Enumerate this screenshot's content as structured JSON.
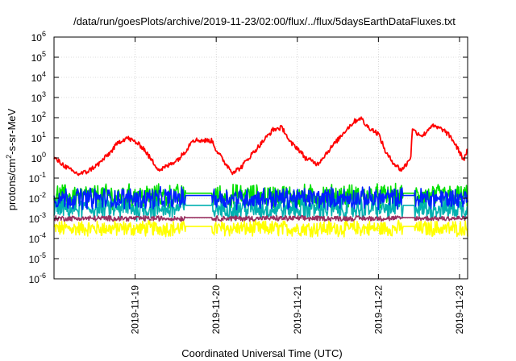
{
  "chart_data": {
    "type": "line",
    "title": "/data/run/goesPlots/archive/2019-11-23/02:00/flux/../flux/5daysEarthDataFluxes.txt",
    "xlabel": "Coordinated Universal Time (UTC)",
    "ylabel": {
      "base": "protons/cm",
      "sup": "2",
      "rest": "-s-sr-MeV"
    },
    "yscale": "log",
    "ylim": [
      -6,
      6
    ],
    "xlim": [
      0,
      5.1
    ],
    "yticks": [
      {
        "base": "10",
        "exp": "-6",
        "v": -6
      },
      {
        "base": "10",
        "exp": "-5",
        "v": -5
      },
      {
        "base": "10",
        "exp": "-4",
        "v": -4
      },
      {
        "base": "10",
        "exp": "-3",
        "v": -3
      },
      {
        "base": "10",
        "exp": "-2",
        "v": -2
      },
      {
        "base": "10",
        "exp": "-1",
        "v": -1
      },
      {
        "base": "10",
        "exp": "0",
        "v": 0
      },
      {
        "base": "10",
        "exp": "1",
        "v": 1
      },
      {
        "base": "10",
        "exp": "2",
        "v": 2
      },
      {
        "base": "10",
        "exp": "3",
        "v": 3
      },
      {
        "base": "10",
        "exp": "4",
        "v": 4
      },
      {
        "base": "10",
        "exp": "5",
        "v": 5
      },
      {
        "base": "10",
        "exp": "6",
        "v": 6
      }
    ],
    "xticks": [
      {
        "label": "2019-11-19",
        "v": 1
      },
      {
        "label": "2019-11-20",
        "v": 2
      },
      {
        "label": "2019-11-21",
        "v": 3
      },
      {
        "label": "2019-11-22",
        "v": 4
      },
      {
        "label": "2019-11-23",
        "v": 5
      }
    ],
    "grid": true,
    "legend": "none",
    "series": [
      {
        "color": "#ffff00",
        "center": -3.5,
        "amp": 0.35,
        "noise": 0.18
      },
      {
        "color": "#00e000",
        "center": -1.9,
        "amp": 0.5,
        "noise": 0.35
      },
      {
        "color": "#00b0b0",
        "center": -2.5,
        "amp": 0.5,
        "noise": 0.35
      },
      {
        "color": "#0020ff",
        "center": -2.0,
        "amp": 0.45,
        "noise": 0.3
      },
      {
        "color": "#9a3060",
        "center": -3.0,
        "amp": 0.12,
        "noise": 0.05
      },
      {
        "color": "#ff0000",
        "points": [
          [
            0.0,
            0.0
          ],
          [
            0.1,
            -0.3
          ],
          [
            0.2,
            -0.6
          ],
          [
            0.3,
            -0.8
          ],
          [
            0.4,
            -0.7
          ],
          [
            0.55,
            -0.3
          ],
          [
            0.7,
            0.3
          ],
          [
            0.8,
            0.8
          ],
          [
            0.9,
            1.0
          ],
          [
            1.0,
            0.8
          ],
          [
            1.1,
            0.5
          ],
          [
            1.2,
            -0.1
          ],
          [
            1.3,
            -0.6
          ],
          [
            1.4,
            -0.4
          ],
          [
            1.55,
            0.0
          ],
          [
            1.65,
            0.5
          ],
          [
            1.7,
            0.9
          ],
          [
            1.95,
            0.85
          ],
          [
            2.0,
            0.4
          ],
          [
            2.1,
            -0.2
          ],
          [
            2.2,
            -0.7
          ],
          [
            2.3,
            -0.5
          ],
          [
            2.4,
            0.0
          ],
          [
            2.55,
            0.7
          ],
          [
            2.7,
            1.4
          ],
          [
            2.8,
            1.5
          ],
          [
            2.85,
            1.3
          ],
          [
            2.9,
            0.8
          ],
          [
            3.0,
            0.5
          ],
          [
            3.1,
            0.0
          ],
          [
            3.25,
            -0.3
          ],
          [
            3.35,
            0.2
          ],
          [
            3.5,
            0.9
          ],
          [
            3.6,
            1.4
          ],
          [
            3.7,
            1.8
          ],
          [
            3.78,
            2.0
          ],
          [
            3.85,
            1.6
          ],
          [
            4.0,
            1.2
          ],
          [
            4.1,
            0.2
          ],
          [
            4.2,
            -0.3
          ],
          [
            4.28,
            -0.6
          ],
          [
            4.35,
            -0.3
          ],
          [
            4.4,
            0.1
          ],
          [
            4.42,
            1.5
          ],
          [
            4.45,
            1.3
          ],
          [
            4.55,
            1.1
          ],
          [
            4.65,
            1.6
          ],
          [
            4.8,
            1.4
          ],
          [
            4.9,
            1.0
          ],
          [
            5.0,
            0.3
          ],
          [
            5.05,
            -0.1
          ],
          [
            5.1,
            0.4
          ]
        ],
        "noise": 0.12
      }
    ]
  }
}
